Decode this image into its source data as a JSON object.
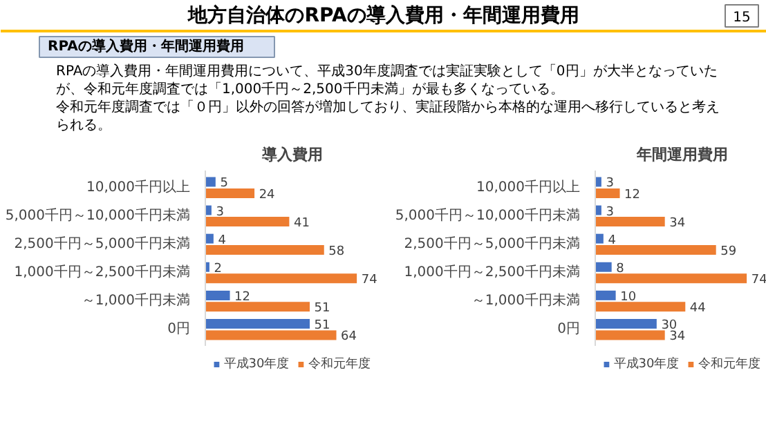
{
  "chart_data": [
    {
      "type": "other",
      "title": "地方自治体のRPAの導入費用・年間運用費用",
      "subtitle": "RPAの導入費用・年間運用費用",
      "annotations": [
        "15",
        "RPAの導入費用・年間運用費用について、平成30年度調査では実証実験として「0円」が大半となっていたが、令和元年度調査では「1,000千円～2,500千円未満」が最も多くなっている。",
        "令和元年度調査では「０円」以外の回答が増加しており、実証段階から本格的な運用へ移行していると考えられる。"
      ]
    },
    {
      "type": "bar",
      "orientation": "horizontal",
      "title": "導入費用",
      "data_labels": true,
      "legend": "bottom",
      "categories": [
        "10,000千円以上",
        "5,000千円～10,000千円未満",
        "2,500千円～5,000千円未満",
        "1,000千円～2,500千円未満",
        "～1,000千円未満",
        "0円"
      ],
      "series": [
        {
          "name": "平成30年度",
          "color": "#4472c4",
          "values": [
            5,
            3,
            4,
            2,
            12,
            51
          ]
        },
        {
          "name": "令和元年度",
          "color": "#ed7d31",
          "values": [
            24,
            41,
            58,
            74,
            51,
            64
          ]
        }
      ]
    },
    {
      "type": "bar",
      "orientation": "horizontal",
      "title": "年間運用費用",
      "data_labels": true,
      "legend": "bottom",
      "categories": [
        "10,000千円以上",
        "5,000千円～10,000千円未満",
        "2,500千円～5,000千円未満",
        "1,000千円～2,500千円未満",
        "～1,000千円未満",
        "0円"
      ],
      "series": [
        {
          "name": "平成30年度",
          "color": "#4472c4",
          "values": [
            3,
            3,
            4,
            8,
            10,
            30
          ]
        },
        {
          "name": "令和元年度",
          "color": "#ed7d31",
          "values": [
            12,
            34,
            59,
            74,
            44,
            34
          ]
        }
      ]
    }
  ]
}
